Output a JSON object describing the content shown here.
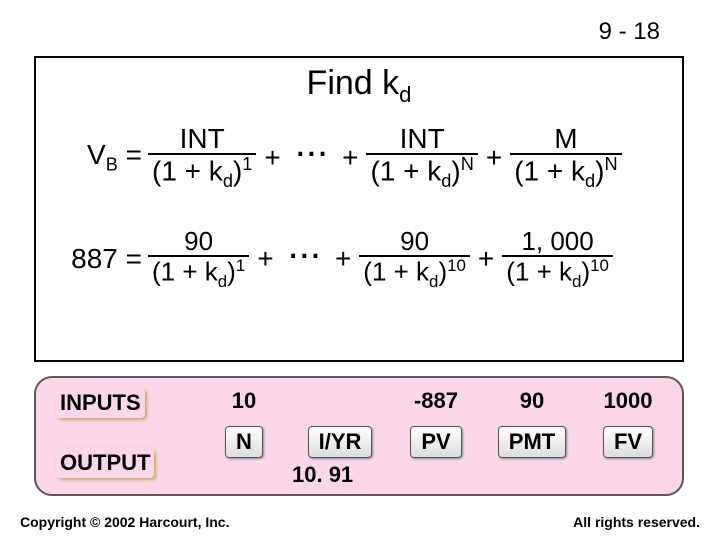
{
  "pageNumber": "9 - 18",
  "title_pre": "Find k",
  "title_sub": "d",
  "eq1": {
    "lhs_var": "V",
    "lhs_sub": "B",
    "eq": " =",
    "t1_num": "INT",
    "t1_den_pre": "(1 + k",
    "t1_den_sub": "d",
    "t1_den_post": ")",
    "t1_exp": "1",
    "dots": "...",
    "t2_num": "INT",
    "t2_exp": "N",
    "t3_num": "M",
    "t3_exp": "N"
  },
  "eq2": {
    "lhs": "887 =",
    "t1_num": "90",
    "t1_exp": "1",
    "t2_num": "90",
    "t2_exp": "10",
    "t3_num": "1, 000",
    "t3_exp": "10"
  },
  "calc": {
    "label_inputs": "INPUTS",
    "label_output": "OUTPUT",
    "top": [
      "10",
      "",
      "-887",
      "90",
      "1000"
    ],
    "bot": [
      "N",
      "I/YR",
      "PV",
      "PMT",
      "FV"
    ],
    "out": "10. 91"
  },
  "footer_left": "Copyright © 2002 Harcourt, Inc.",
  "footer_right": "All rights reserved."
}
